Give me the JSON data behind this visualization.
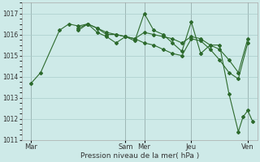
{
  "title": "",
  "xlabel": "Pression niveau de la mer( hPa )",
  "ylabel": "",
  "background_color": "#ceeae8",
  "grid_color": "#aaccca",
  "line_color": "#2d6a2d",
  "ylim": [
    1011,
    1017.5
  ],
  "xlim": [
    0,
    100
  ],
  "xtick_positions": [
    4,
    44,
    52,
    72,
    96
  ],
  "xtick_labels": [
    "Mar",
    "Sam",
    "Mer",
    "Jeu",
    "Ven"
  ],
  "ytick_positions": [
    1011,
    1012,
    1013,
    1014,
    1015,
    1016,
    1017
  ],
  "vlines": [
    4,
    44,
    52,
    72,
    96
  ],
  "series": [
    {
      "xy": [
        [
          4,
          1013.7
        ],
        [
          8,
          1014.2
        ],
        [
          16,
          1016.2
        ],
        [
          20,
          1016.5
        ],
        [
          24,
          1016.4
        ],
        [
          28,
          1016.5
        ],
        [
          32,
          1016.3
        ],
        [
          36,
          1016.0
        ],
        [
          40,
          1016.0
        ],
        [
          44,
          1015.9
        ],
        [
          48,
          1015.7
        ],
        [
          52,
          1017.0
        ],
        [
          56,
          1016.2
        ],
        [
          60,
          1016.0
        ],
        [
          64,
          1015.6
        ],
        [
          68,
          1015.2
        ],
        [
          72,
          1016.6
        ],
        [
          76,
          1015.1
        ],
        [
          80,
          1015.5
        ],
        [
          84,
          1015.5
        ],
        [
          88,
          1013.2
        ],
        [
          92,
          1011.4
        ],
        [
          94,
          1012.1
        ],
        [
          96,
          1012.4
        ],
        [
          98,
          1011.9
        ]
      ]
    },
    {
      "xy": [
        [
          24,
          1016.2
        ],
        [
          28,
          1016.5
        ],
        [
          32,
          1016.3
        ],
        [
          36,
          1016.1
        ],
        [
          40,
          1016.0
        ],
        [
          44,
          1015.9
        ],
        [
          48,
          1015.8
        ],
        [
          52,
          1016.1
        ],
        [
          56,
          1016.0
        ],
        [
          60,
          1015.9
        ],
        [
          64,
          1015.8
        ],
        [
          68,
          1015.6
        ],
        [
          72,
          1015.9
        ],
        [
          76,
          1015.8
        ],
        [
          80,
          1015.5
        ],
        [
          84,
          1015.3
        ],
        [
          88,
          1014.8
        ],
        [
          92,
          1014.2
        ],
        [
          96,
          1015.8
        ]
      ]
    },
    {
      "xy": [
        [
          24,
          1016.3
        ],
        [
          28,
          1016.5
        ],
        [
          32,
          1016.1
        ],
        [
          36,
          1015.9
        ],
        [
          40,
          1015.6
        ],
        [
          44,
          1015.9
        ],
        [
          48,
          1015.8
        ],
        [
          52,
          1015.6
        ],
        [
          56,
          1015.5
        ],
        [
          60,
          1015.3
        ],
        [
          64,
          1015.1
        ],
        [
          68,
          1015.0
        ],
        [
          72,
          1015.8
        ],
        [
          76,
          1015.7
        ],
        [
          80,
          1015.3
        ],
        [
          84,
          1014.8
        ],
        [
          88,
          1014.2
        ],
        [
          92,
          1013.9
        ],
        [
          96,
          1015.6
        ]
      ]
    }
  ]
}
